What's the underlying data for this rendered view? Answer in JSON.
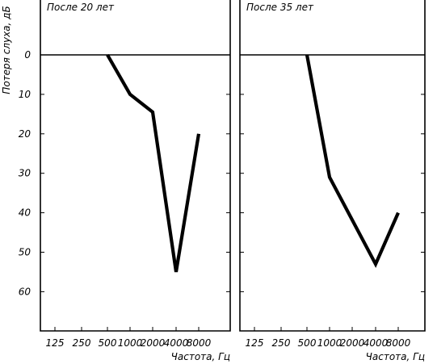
{
  "chart_data": [
    {
      "type": "line",
      "title": "После 20 лет",
      "ylabel": "Потеря слуха, дБ",
      "xlabel": "Частота, Гц",
      "x_tick_labels": [
        "125",
        "250",
        "500",
        "1000",
        "2000",
        "4000",
        "8000"
      ],
      "y_tick_labels": [
        "0",
        "10",
        "20",
        "30",
        "40",
        "50",
        "60"
      ],
      "ylim": [
        -12,
        70
      ],
      "y_inverted": true,
      "series": [
        {
          "x": [
            500,
            1000,
            2000,
            4000,
            8000
          ],
          "y": [
            0,
            10,
            14.5,
            55,
            20
          ]
        }
      ]
    },
    {
      "type": "line",
      "title": "После 35 лет",
      "ylabel": "",
      "xlabel": "Частота, Гц",
      "x_tick_labels": [
        "125",
        "250",
        "500",
        "1000",
        "2000",
        "4000",
        "8000"
      ],
      "y_tick_labels": [],
      "ylim": [
        -12,
        70
      ],
      "y_inverted": true,
      "series": [
        {
          "x": [
            500,
            1000,
            4000,
            8000
          ],
          "y": [
            0,
            31,
            53,
            40
          ]
        }
      ]
    }
  ]
}
